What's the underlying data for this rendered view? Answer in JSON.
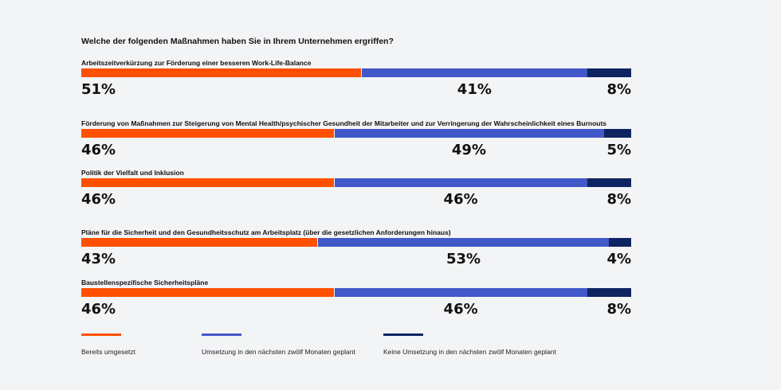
{
  "chart_data": {
    "type": "bar",
    "orientation": "horizontal-stacked",
    "title": "Welche der folgenden Maßnahmen haben Sie in Ihrem Unternehmen ergriffen?",
    "categories": [
      "Arbeitszeitverkürzung zur Förderung einer besseren Work-Life-Balance",
      "Förderung von Maßnahmen zur Steigerung von Mental Health/psychischer Gesundheit der Mitarbeiter und zur Verringerung der Wahrscheinlichkeit eines Burnouts",
      "Politik der Vielfalt und Inklusion",
      "Pläne für die Sicherheit und den Gesundheitsschutz am Arbeitsplatz (über die gesetzlichen Anforderungen hinaus)",
      "Baustellenspezifische Sicherheitspläne"
    ],
    "series": [
      {
        "name": "Bereits umgesetzt",
        "color": "#ff5000",
        "values": [
          51,
          46,
          46,
          43,
          46
        ]
      },
      {
        "name": "Umsetzung in den nächsten zwölf Monaten geplant",
        "color": "#4158c8",
        "values": [
          41,
          49,
          46,
          53,
          46
        ]
      },
      {
        "name": "Keine Umsetzung in den nächsten zwölf Monaten geplant",
        "color": "#0d2461",
        "values": [
          8,
          5,
          8,
          4,
          8
        ]
      }
    ],
    "unit": "%",
    "xlim": [
      0,
      100
    ],
    "legend_position": "bottom"
  }
}
